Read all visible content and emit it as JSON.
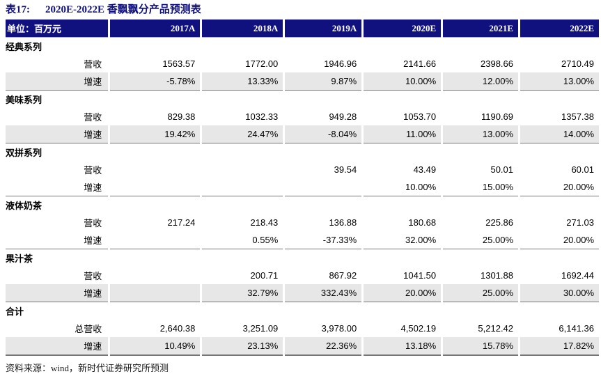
{
  "title": {
    "label": "表17:",
    "text": "2020E-2022E 香飘飘分产品预测表"
  },
  "table": {
    "unit_label": "单位：百万元",
    "columns": [
      "2017A",
      "2018A",
      "2019A",
      "2020E",
      "2021E",
      "2022E"
    ],
    "rows": [
      {
        "type": "section",
        "label": "经典系列"
      },
      {
        "type": "data",
        "label": "营收",
        "shaded": false,
        "values": [
          "1563.57",
          "1772.00",
          "1946.96",
          "2141.66",
          "2398.66",
          "2710.49"
        ]
      },
      {
        "type": "data",
        "label": "增速",
        "shaded": true,
        "section_end": true,
        "values": [
          "-5.78%",
          "13.33%",
          "9.87%",
          "10.00%",
          "12.00%",
          "13.00%"
        ]
      },
      {
        "type": "section",
        "label": "美味系列"
      },
      {
        "type": "data",
        "label": "营收",
        "shaded": false,
        "values": [
          "829.38",
          "1032.33",
          "949.28",
          "1053.70",
          "1190.69",
          "1357.38"
        ]
      },
      {
        "type": "data",
        "label": "增速",
        "shaded": true,
        "section_end": true,
        "values": [
          "19.42%",
          "24.47%",
          "-8.04%",
          "11.00%",
          "13.00%",
          "14.00%"
        ]
      },
      {
        "type": "section",
        "label": "双拼系列"
      },
      {
        "type": "data",
        "label": "营收",
        "shaded": false,
        "values": [
          "",
          "",
          "39.54",
          "43.49",
          "50.01",
          "60.01"
        ]
      },
      {
        "type": "data",
        "label": "增速",
        "shaded": false,
        "section_end": true,
        "values": [
          "",
          "",
          "",
          "10.00%",
          "15.00%",
          "20.00%"
        ]
      },
      {
        "type": "section",
        "label": "液体奶茶"
      },
      {
        "type": "data",
        "label": "营收",
        "shaded": false,
        "values": [
          "217.24",
          "218.43",
          "136.88",
          "180.68",
          "225.86",
          "271.03"
        ]
      },
      {
        "type": "data",
        "label": "增速",
        "shaded": false,
        "section_end": true,
        "values": [
          "",
          "0.55%",
          "-37.33%",
          "32.00%",
          "25.00%",
          "20.00%"
        ]
      },
      {
        "type": "section",
        "label": "果汁茶"
      },
      {
        "type": "data",
        "label": "营收",
        "shaded": false,
        "values": [
          "",
          "200.71",
          "867.92",
          "1041.50",
          "1301.88",
          "1692.44"
        ]
      },
      {
        "type": "data",
        "label": "增速",
        "shaded": true,
        "section_end": true,
        "values": [
          "",
          "32.79%",
          "332.43%",
          "20.00%",
          "25.00%",
          "30.00%"
        ]
      },
      {
        "type": "section",
        "label": "合计"
      },
      {
        "type": "data",
        "label": "总营收",
        "shaded": false,
        "values": [
          "2,640.38",
          "3,251.09",
          "3,978.00",
          "4,502.19",
          "5,212.42",
          "6,141.36"
        ]
      },
      {
        "type": "data",
        "label": "增速",
        "shaded": true,
        "table_end": true,
        "values": [
          "10.49%",
          "23.13%",
          "22.36%",
          "13.18%",
          "15.78%",
          "17.82%"
        ]
      }
    ]
  },
  "footer": {
    "text": "资料来源：wind，新时代证券研究所预测"
  },
  "colors": {
    "navy": "#10107E",
    "stripe": "#E7E7E7",
    "line": "#757575"
  }
}
